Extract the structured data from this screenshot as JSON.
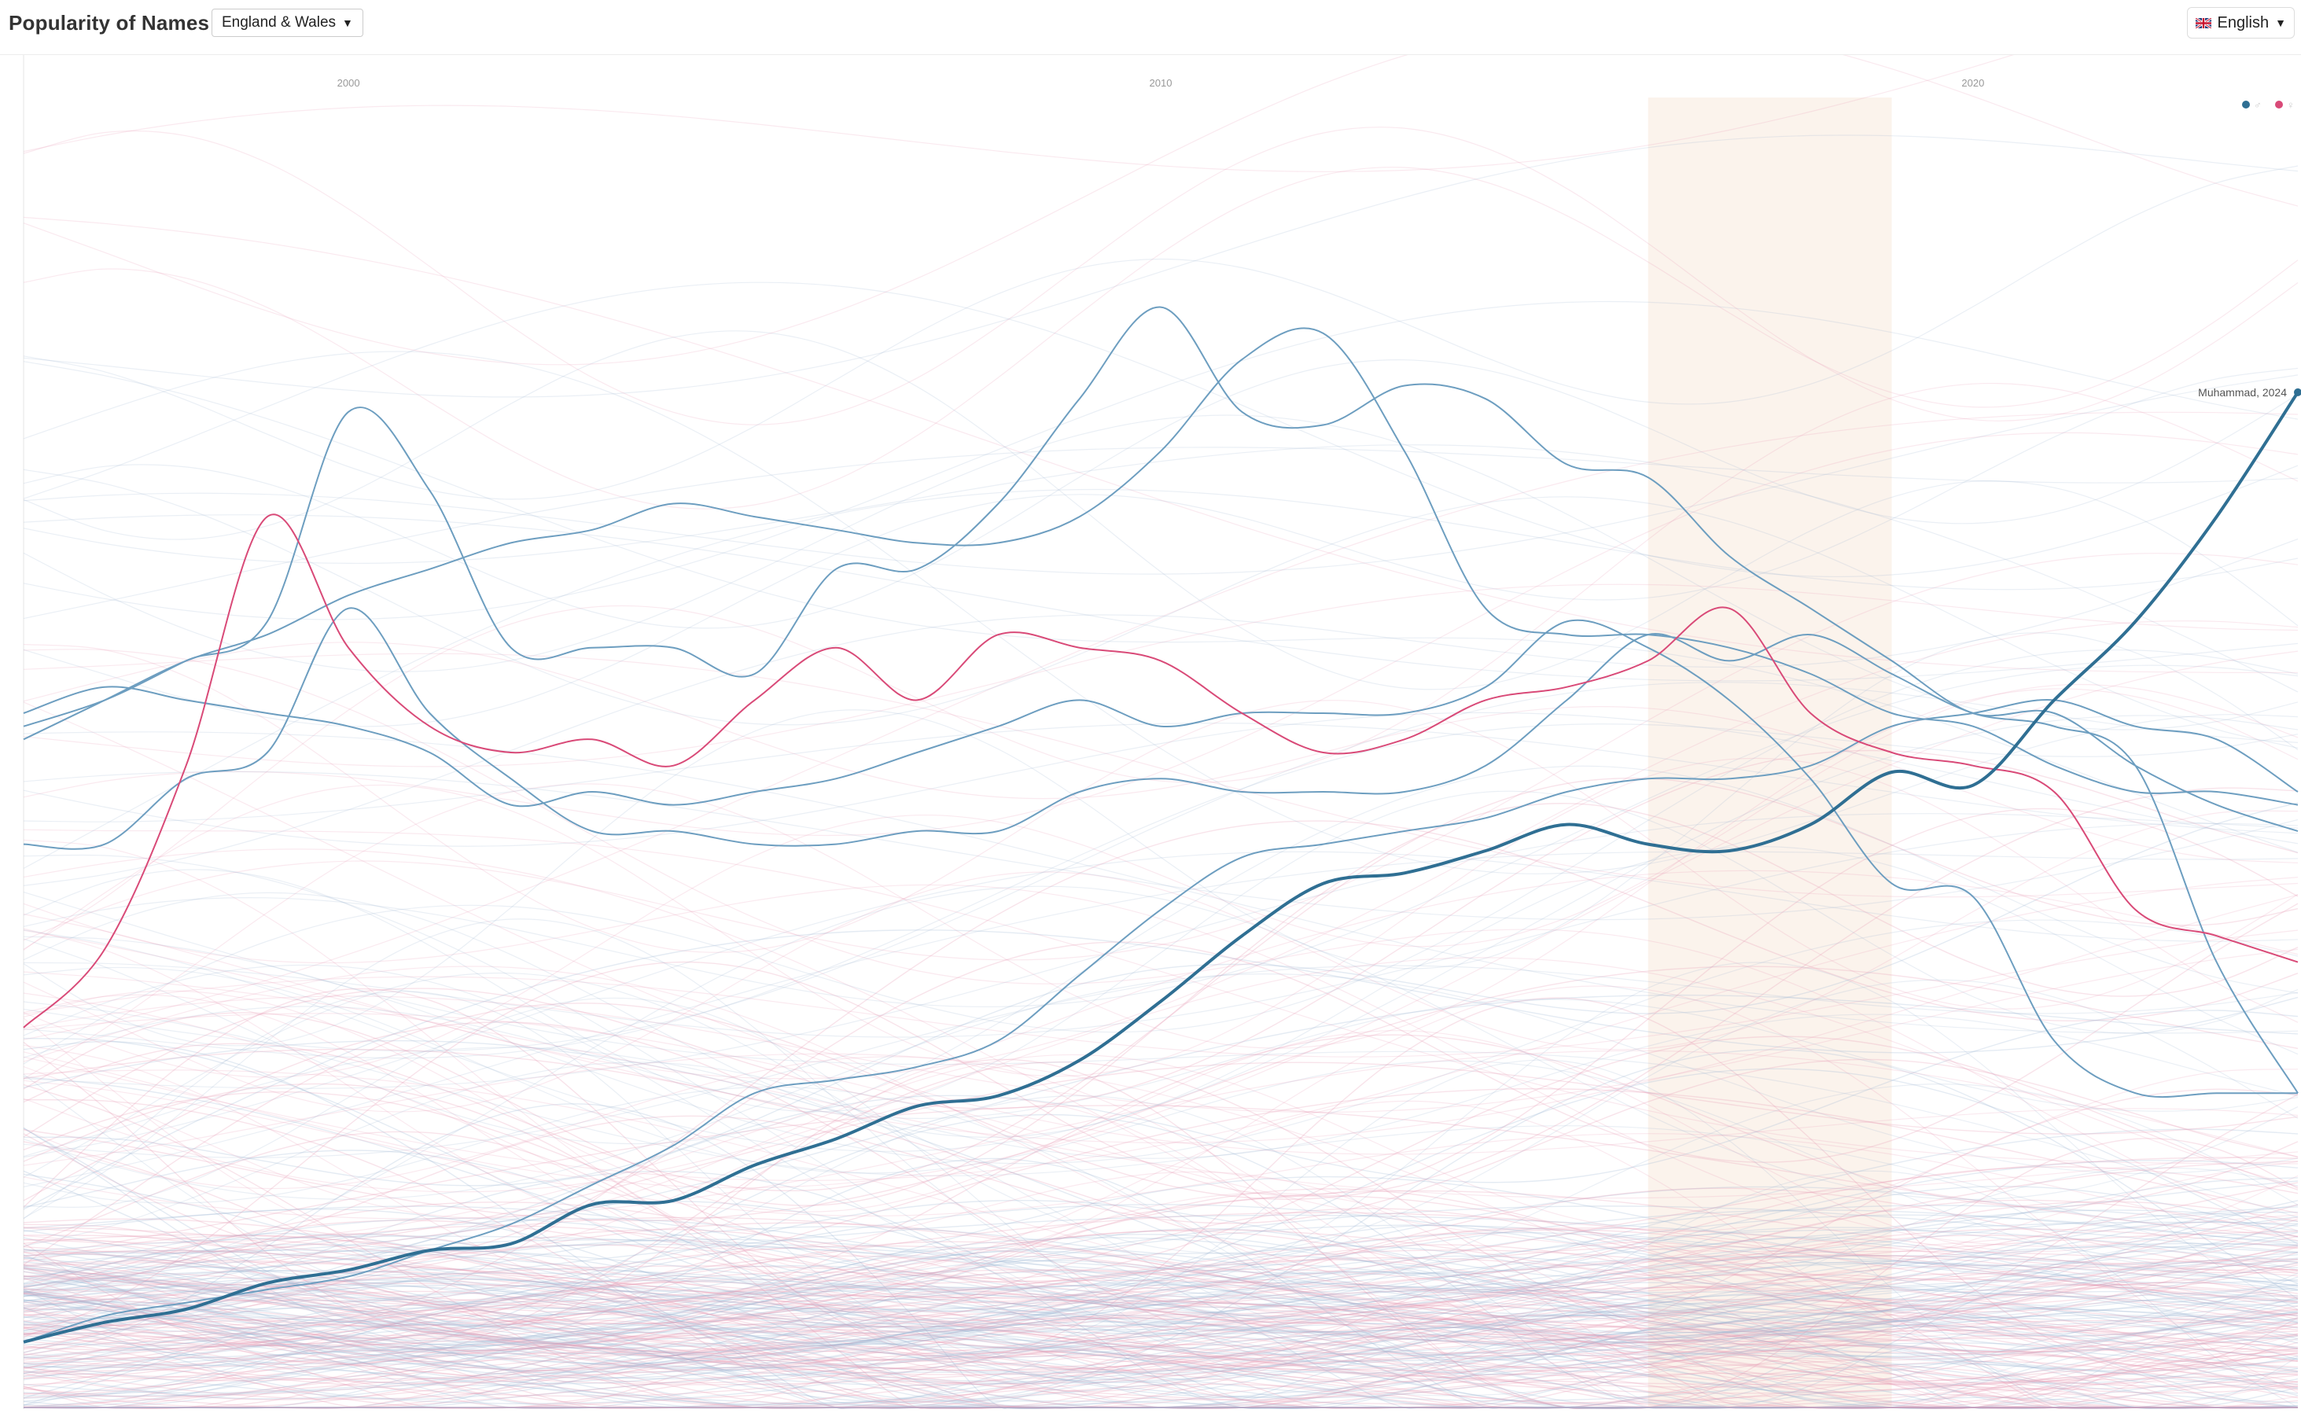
{
  "header": {
    "title": "Popularity of Names",
    "region_label": "England & Wales",
    "language_label": "English",
    "language_flag": "uk-flag-icon"
  },
  "colors": {
    "boy": "#2f6f93",
    "boy_light": "#6d9ec0",
    "girl": "#d94a78",
    "highlight_band": "#fbf3ec",
    "background_boy": "#9fb6d3",
    "background_girl": "#e79ab4"
  },
  "chart_data": {
    "type": "line",
    "title": "",
    "xlabel": "",
    "ylabel": "",
    "xlim": [
      1996,
      2024
    ],
    "ylim": [
      0,
      100
    ],
    "x_ticks": [
      2000,
      2010,
      2020
    ],
    "x_tick_labels": [
      "2000",
      "2010",
      "2020"
    ],
    "legend": [
      {
        "name": "♂",
        "color": "#2f6f93"
      },
      {
        "name": "♀",
        "color": "#d94a78"
      }
    ],
    "legend_position": "top-right",
    "highlight_range": [
      2016,
      2019
    ],
    "annotation": {
      "text": "Muhammad, 2024",
      "x": 2024,
      "y": 77.5
    },
    "highlight_series": {
      "name": "Muhammad",
      "sex": "m",
      "x": [
        1996,
        1997,
        1998,
        1999,
        2000,
        2001,
        2002,
        2003,
        2004,
        2005,
        2006,
        2007,
        2008,
        2009,
        2010,
        2011,
        2012,
        2013,
        2014,
        2015,
        2016,
        2017,
        2018,
        2019,
        2020,
        2021,
        2022,
        2023,
        2024
      ],
      "values": [
        5.0,
        6.5,
        7.5,
        9.5,
        10.5,
        12.0,
        12.5,
        15.5,
        15.8,
        18.5,
        20.5,
        23.0,
        23.8,
        26.5,
        31.0,
        36.0,
        40.0,
        40.8,
        42.5,
        44.5,
        43.0,
        42.5,
        44.5,
        48.5,
        47.5,
        54.0,
        60.0,
        68.0,
        77.5
      ]
    },
    "series": [
      {
        "name": "boy-a",
        "sex": "m",
        "x": [
          1996,
          1997,
          1998,
          1999,
          2000,
          2001,
          2002,
          2003,
          2004,
          2005,
          2006,
          2007,
          2008,
          2009,
          2010,
          2011,
          2012,
          2013,
          2014,
          2015,
          2016,
          2017,
          2018,
          2019,
          2020,
          2021,
          2022,
          2023,
          2024
        ],
        "values": [
          52,
          54,
          57,
          60,
          76,
          70,
          58,
          58,
          58,
          56,
          64,
          64,
          69,
          77,
          84,
          76,
          75,
          78,
          77,
          72,
          71,
          65,
          61,
          57,
          53,
          53,
          49,
          46,
          44
        ]
      },
      {
        "name": "boy-b",
        "sex": "m",
        "x": [
          1996,
          1997,
          1998,
          1999,
          2000,
          2001,
          2002,
          2003,
          2004,
          2005,
          2006,
          2007,
          2008,
          2009,
          2010,
          2011,
          2012,
          2013,
          2014,
          2015,
          2016,
          2017,
          2018,
          2019,
          2020,
          2021,
          2022,
          2023,
          2024
        ],
        "values": [
          51,
          54,
          57,
          59,
          62,
          64,
          66,
          67,
          69,
          68,
          67,
          66,
          66,
          68,
          73,
          80,
          82,
          73,
          61,
          59,
          59,
          58,
          56,
          53,
          52,
          49,
          47,
          47,
          46
        ]
      },
      {
        "name": "boy-c",
        "sex": "m",
        "x": [
          1996,
          1997,
          1998,
          1999,
          2000,
          2001,
          2002,
          2003,
          2004,
          2005,
          2006,
          2007,
          2008,
          2009,
          2010,
          2011,
          2012,
          2013,
          2014,
          2015,
          2016,
          2017,
          2018,
          2019,
          2020,
          2021,
          2022,
          2023,
          2024
        ],
        "values": [
          43,
          43,
          48,
          50,
          61,
          53,
          48,
          44,
          44,
          43,
          43,
          44,
          44,
          47,
          48,
          47,
          47,
          47,
          49,
          54,
          59,
          57,
          59,
          56,
          53,
          52,
          49,
          34,
          24
        ]
      },
      {
        "name": "boy-d",
        "sex": "m",
        "x": [
          1996,
          1997,
          1998,
          1999,
          2000,
          2001,
          2002,
          2003,
          2004,
          2005,
          2006,
          2007,
          2008,
          2009,
          2010,
          2011,
          2012,
          2013,
          2014,
          2015,
          2016,
          2017,
          2018,
          2019,
          2020,
          2021,
          2022,
          2023,
          2024
        ],
        "values": [
          53,
          55,
          54,
          53,
          52,
          50,
          46,
          47,
          46,
          47,
          48,
          50,
          52,
          54,
          52,
          53,
          53,
          53,
          55,
          60,
          58,
          54,
          48,
          40,
          39,
          28,
          24,
          24,
          24
        ]
      },
      {
        "name": "boy-e",
        "sex": "m",
        "x": [
          1996,
          1997,
          1998,
          1999,
          2000,
          2001,
          2002,
          2003,
          2004,
          2005,
          2006,
          2007,
          2008,
          2009,
          2010,
          2011,
          2012,
          2013,
          2014,
          2015,
          2016,
          2017,
          2018,
          2019,
          2020,
          2021,
          2022,
          2023,
          2024
        ],
        "values": [
          5,
          7,
          8,
          9,
          10,
          12,
          14,
          17,
          20,
          24,
          25,
          26,
          28,
          33,
          38,
          42,
          43,
          44,
          45,
          47,
          48,
          48,
          49,
          52,
          53,
          54,
          52,
          51,
          47
        ]
      },
      {
        "name": "girl-a",
        "sex": "f",
        "x": [
          1996,
          1997,
          1998,
          1999,
          2000,
          2001,
          2002,
          2003,
          2004,
          2005,
          2006,
          2007,
          2008,
          2009,
          2010,
          2011,
          2012,
          2013,
          2014,
          2015,
          2016,
          2017,
          2018,
          2019,
          2020,
          2021,
          2022,
          2023,
          2024
        ],
        "values": [
          29,
          35,
          49,
          68,
          58,
          52,
          50,
          51,
          49,
          54,
          58,
          54,
          59,
          58,
          57,
          53,
          50,
          51,
          54,
          55,
          57,
          61,
          53,
          50,
          49,
          47,
          38,
          36,
          34
        ]
      }
    ]
  }
}
